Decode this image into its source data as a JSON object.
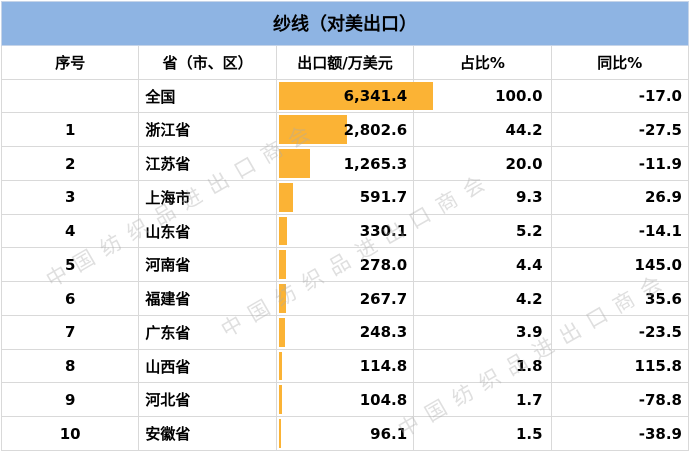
{
  "title": "纱线（对美出口）",
  "headers": {
    "idx": "序号",
    "province": "省（市、区）",
    "value": "出口额/万美元",
    "share": "占比%",
    "yoy": "同比%"
  },
  "total": {
    "idx": "",
    "province": "全国",
    "value": 6341.4,
    "value_label": "6,341.4",
    "share": "100.0",
    "yoy": "-17.0"
  },
  "rows": [
    {
      "idx": "1",
      "province": "浙江省",
      "value": 2802.6,
      "value_label": "2,802.6",
      "share": "44.2",
      "yoy": "-27.5"
    },
    {
      "idx": "2",
      "province": "江苏省",
      "value": 1265.3,
      "value_label": "1,265.3",
      "share": "20.0",
      "yoy": "-11.9"
    },
    {
      "idx": "3",
      "province": "上海市",
      "value": 591.7,
      "value_label": "591.7",
      "share": "9.3",
      "yoy": "26.9"
    },
    {
      "idx": "4",
      "province": "山东省",
      "value": 330.1,
      "value_label": "330.1",
      "share": "5.2",
      "yoy": "-14.1"
    },
    {
      "idx": "5",
      "province": "河南省",
      "value": 278.0,
      "value_label": "278.0",
      "share": "4.4",
      "yoy": "145.0"
    },
    {
      "idx": "6",
      "province": "福建省",
      "value": 267.7,
      "value_label": "267.7",
      "share": "4.2",
      "yoy": "35.6"
    },
    {
      "idx": "7",
      "province": "广东省",
      "value": 248.3,
      "value_label": "248.3",
      "share": "3.9",
      "yoy": "-23.5"
    },
    {
      "idx": "8",
      "province": "山西省",
      "value": 114.8,
      "value_label": "114.8",
      "share": "1.8",
      "yoy": "115.8"
    },
    {
      "idx": "9",
      "province": "河北省",
      "value": 104.8,
      "value_label": "104.8",
      "share": "1.7",
      "yoy": "-78.8"
    },
    {
      "idx": "10",
      "province": "安徽省",
      "value": 96.1,
      "value_label": "96.1",
      "share": "1.5",
      "yoy": "-38.9"
    }
  ],
  "colors": {
    "title_bg": "#8eb4e3",
    "bar": "#fbb335",
    "gridline": "#d9d9d9"
  },
  "watermark": "中国纺织品进出口商会"
}
